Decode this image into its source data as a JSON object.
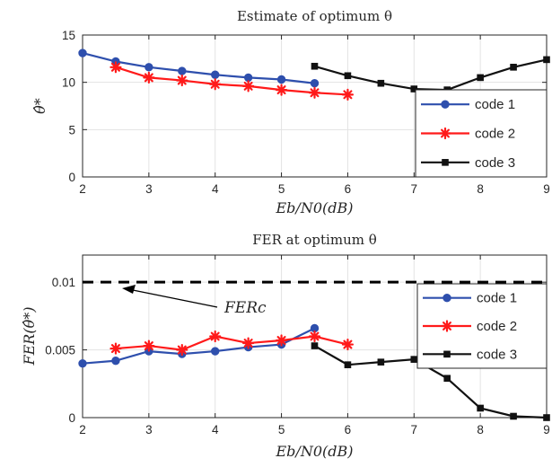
{
  "chart_data": [
    {
      "type": "line",
      "title": "Estimate of optimum θ",
      "xlabel": "Eb/N0(dB)",
      "ylabel": "θ̂*",
      "xlim": [
        2,
        9
      ],
      "ylim": [
        0,
        15
      ],
      "xticks": [
        "2",
        "3",
        "4",
        "5",
        "6",
        "7",
        "8",
        "9"
      ],
      "yticks": [
        "0",
        "5",
        "10",
        "15"
      ],
      "grid": true,
      "legend_position": "bottom-right",
      "series": [
        {
          "name": "code 1",
          "color": "#2e4fad",
          "marker": "circle",
          "x": [
            2,
            2.5,
            3,
            3.5,
            4,
            4.5,
            5,
            5.5
          ],
          "y": [
            13.1,
            12.2,
            11.6,
            11.2,
            10.8,
            10.5,
            10.3,
            9.9
          ]
        },
        {
          "name": "code 2",
          "color": "#ff1a1a",
          "marker": "star",
          "x": [
            2.5,
            3,
            3.5,
            4,
            4.5,
            5,
            5.5,
            6
          ],
          "y": [
            11.6,
            10.5,
            10.2,
            9.8,
            9.6,
            9.2,
            8.9,
            8.7
          ]
        },
        {
          "name": "code 3",
          "color": "#111111",
          "marker": "square",
          "x": [
            5.5,
            6,
            6.5,
            7,
            7.5,
            8,
            8.5,
            9
          ],
          "y": [
            11.7,
            10.7,
            9.9,
            9.3,
            9.2,
            10.5,
            11.6,
            12.4
          ]
        }
      ]
    },
    {
      "type": "line",
      "title": "FER at optimum θ",
      "xlabel": "Eb/N0(dB)",
      "ylabel": "FER(θ̂*)",
      "xlim": [
        2,
        9
      ],
      "ylim": [
        0,
        0.012
      ],
      "xticks": [
        "2",
        "3",
        "4",
        "5",
        "6",
        "7",
        "8",
        "9"
      ],
      "yticks": [
        "0",
        "0.005",
        "0.01"
      ],
      "grid": true,
      "legend_position": "top-right",
      "reference_line": {
        "y": 0.01,
        "label": "FERc",
        "style": "dashed"
      },
      "series": [
        {
          "name": "code 1",
          "color": "#2e4fad",
          "marker": "circle",
          "x": [
            2,
            2.5,
            3,
            3.5,
            4,
            4.5,
            5,
            5.5
          ],
          "y": [
            0.004,
            0.0042,
            0.0049,
            0.0047,
            0.0049,
            0.0052,
            0.0054,
            0.0066
          ]
        },
        {
          "name": "code 2",
          "color": "#ff1a1a",
          "marker": "star",
          "x": [
            2.5,
            3,
            3.5,
            4,
            4.5,
            5,
            5.5,
            6
          ],
          "y": [
            0.0051,
            0.0053,
            0.005,
            0.006,
            0.0055,
            0.0057,
            0.006,
            0.0054
          ]
        },
        {
          "name": "code 3",
          "color": "#111111",
          "marker": "square",
          "x": [
            5.5,
            6,
            6.5,
            7,
            7.5,
            8,
            8.5,
            9
          ],
          "y": [
            0.0053,
            0.0039,
            0.0041,
            0.0043,
            0.0029,
            0.0007,
            0.0001,
            0.0
          ]
        }
      ]
    }
  ]
}
